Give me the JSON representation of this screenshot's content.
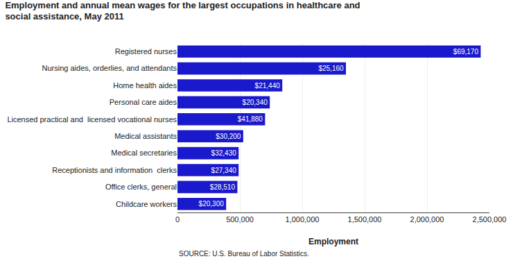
{
  "chart_data": {
    "type": "bar",
    "orientation": "horizontal",
    "title": "Employment and annual mean wages for the largest occupations in healthcare and",
    "subtitle": "social assistance, May 2011",
    "categories": [
      "Childcare workers",
      "Office clerks, general",
      "Receptionists and information  clerks",
      "Medical secretaries",
      "Medical assistants",
      "Licensed practical and  licensed vocational nurses",
      "Personal care aides",
      "Home health aides",
      "Nursing aides, orderlies, and attendants",
      "Registered nurses"
    ],
    "values": [
      390000,
      480000,
      490000,
      490000,
      527000,
      702000,
      740000,
      840000,
      1350000,
      2430000
    ],
    "wages": [
      "$20,300",
      "$28,510",
      "$27,340",
      "$32,430",
      "$30,200",
      "$41,880",
      "$20,340",
      "$21,440",
      "$25,160",
      "$69,170"
    ],
    "color": "#1a1acc",
    "xlabel": "Employment",
    "source": "SOURCE: U.S. Bureau of Labor Statistics.",
    "xlim": [
      0,
      2500000
    ],
    "xticks": [
      0,
      {
        "value": 500000,
        "label": "500,000"
      },
      {
        "value": 1000000,
        "label": "1,000,000"
      },
      {
        "value": 1500000,
        "label": "1,500,000"
      },
      {
        "value": 2000000,
        "label": "2,000,000"
      },
      {
        "value": 2500000,
        "label": "2,500,000"
      }
    ],
    "grid": true
  }
}
